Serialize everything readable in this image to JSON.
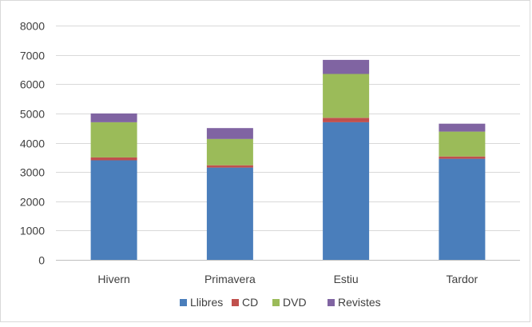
{
  "chart_data": {
    "type": "bar",
    "stacked": true,
    "categories": [
      "Hivern",
      "Primavera",
      "Estiu",
      "Tardor"
    ],
    "series": [
      {
        "name": "Llibres",
        "values": [
          3400,
          3150,
          4700,
          3450
        ],
        "color": "#4a7ebb"
      },
      {
        "name": "CD",
        "values": [
          100,
          80,
          150,
          80
        ],
        "color": "#c0504d"
      },
      {
        "name": "DVD",
        "values": [
          1200,
          900,
          1500,
          850
        ],
        "color": "#9bbb59"
      },
      {
        "name": "Revistes",
        "values": [
          300,
          370,
          480,
          270
        ],
        "color": "#8064a2"
      }
    ],
    "ylim": [
      0,
      8000
    ],
    "yticks": [
      0,
      1000,
      2000,
      3000,
      4000,
      5000,
      6000,
      7000,
      8000
    ],
    "grid": true,
    "legend_position": "bottom"
  }
}
